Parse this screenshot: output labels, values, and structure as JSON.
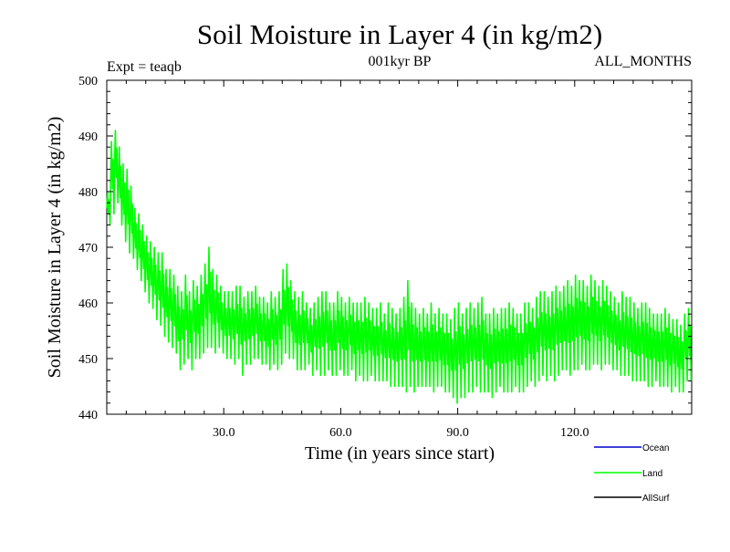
{
  "chart_data": {
    "type": "line",
    "title": "Soil Moisture in Layer 4 (in kg/m2)",
    "subtitle_left": "Expt = teaqb",
    "subtitle_center": "001kyr BP",
    "subtitle_right": "ALL_MONTHS",
    "xlabel": "Time (in years since start)",
    "ylabel": "Soil Moisture in Layer 4 (in kg/m2)",
    "xlim": [
      0,
      150
    ],
    "ylim": [
      440,
      500
    ],
    "x_ticks": [
      30,
      60,
      90,
      120
    ],
    "x_tick_labels": [
      "30.0",
      "60.0",
      "90.0",
      "120.0"
    ],
    "y_ticks": [
      440,
      450,
      460,
      470,
      480,
      490,
      500
    ],
    "y_tick_labels": [
      "440",
      "450",
      "460",
      "470",
      "480",
      "490",
      "500"
    ],
    "grid": false,
    "legend_position": "bottom-right, outside plot",
    "series": [
      {
        "name": "Ocean",
        "color": "#0000cc",
        "shown_in_plot": false,
        "points": []
      },
      {
        "name": "Land",
        "color": "#00ff00",
        "sampling": "monthly (seasonal cycle); values below are [x, min, max] envelope per year",
        "envelope": [
          [
            0.5,
            474,
            480
          ],
          [
            1.5,
            476,
            489
          ],
          [
            2.5,
            478,
            491
          ],
          [
            3.5,
            474,
            488
          ],
          [
            4.5,
            471,
            485
          ],
          [
            5.5,
            469,
            484
          ],
          [
            6.5,
            468,
            481
          ],
          [
            7.5,
            466,
            477
          ],
          [
            8.5,
            464,
            476
          ],
          [
            9.5,
            462,
            474
          ],
          [
            10.5,
            460,
            472
          ],
          [
            11.5,
            459,
            471
          ],
          [
            12.5,
            457,
            470
          ],
          [
            13.5,
            456,
            469
          ],
          [
            14.5,
            454,
            469
          ],
          [
            15.5,
            453,
            466
          ],
          [
            16.5,
            452,
            466
          ],
          [
            17.5,
            451,
            465
          ],
          [
            18.5,
            448,
            463
          ],
          [
            19.5,
            449,
            462
          ],
          [
            20.5,
            450,
            465
          ],
          [
            21.5,
            448,
            462
          ],
          [
            22.5,
            450,
            464
          ],
          [
            23.5,
            450,
            463
          ],
          [
            24.5,
            451,
            465
          ],
          [
            25.5,
            452,
            467
          ],
          [
            26.5,
            452,
            470
          ],
          [
            27.5,
            451,
            466
          ],
          [
            28.5,
            452,
            465
          ],
          [
            29.5,
            451,
            463
          ],
          [
            30.5,
            450,
            462
          ],
          [
            31.5,
            450,
            462
          ],
          [
            32.5,
            449,
            462
          ],
          [
            33.5,
            450,
            463
          ],
          [
            34.5,
            447,
            463
          ],
          [
            35.5,
            449,
            461
          ],
          [
            36.5,
            449,
            462
          ],
          [
            37.5,
            450,
            462
          ],
          [
            38.5,
            450,
            463
          ],
          [
            39.5,
            449,
            461
          ],
          [
            40.5,
            449,
            461
          ],
          [
            41.5,
            448,
            460
          ],
          [
            42.5,
            449,
            462
          ],
          [
            43.5,
            448,
            461
          ],
          [
            44.5,
            449,
            462
          ],
          [
            45.5,
            451,
            466
          ],
          [
            46.5,
            450,
            467
          ],
          [
            47.5,
            450,
            464
          ],
          [
            48.5,
            448,
            462
          ],
          [
            49.5,
            448,
            461
          ],
          [
            50.5,
            448,
            462
          ],
          [
            51.5,
            449,
            460
          ],
          [
            52.5,
            447,
            459
          ],
          [
            53.5,
            448,
            460
          ],
          [
            54.5,
            447,
            461
          ],
          [
            55.5,
            447,
            462
          ],
          [
            56.5,
            448,
            462
          ],
          [
            57.5,
            447,
            460
          ],
          [
            58.5,
            447,
            460
          ],
          [
            59.5,
            448,
            462
          ],
          [
            60.5,
            447,
            461
          ],
          [
            61.5,
            447,
            460
          ],
          [
            62.5,
            448,
            461
          ],
          [
            63.5,
            446,
            460
          ],
          [
            64.5,
            447,
            460
          ],
          [
            65.5,
            446,
            460
          ],
          [
            66.5,
            446,
            461
          ],
          [
            67.5,
            447,
            460
          ],
          [
            68.5,
            446,
            459
          ],
          [
            69.5,
            446,
            459
          ],
          [
            70.5,
            446,
            460
          ],
          [
            71.5,
            446,
            458
          ],
          [
            72.5,
            445,
            460
          ],
          [
            73.5,
            445,
            459
          ],
          [
            74.5,
            445,
            458
          ],
          [
            75.5,
            445,
            459
          ],
          [
            76.5,
            444,
            461
          ],
          [
            77.5,
            445,
            464
          ],
          [
            78.5,
            444,
            460
          ],
          [
            79.5,
            445,
            459
          ],
          [
            80.5,
            445,
            458
          ],
          [
            81.5,
            445,
            459
          ],
          [
            82.5,
            445,
            458
          ],
          [
            83.5,
            444,
            460
          ],
          [
            84.5,
            445,
            458
          ],
          [
            85.5,
            445,
            459
          ],
          [
            86.5,
            444,
            458
          ],
          [
            87.5,
            444,
            458
          ],
          [
            88.5,
            443,
            457
          ],
          [
            89.5,
            442,
            459
          ],
          [
            90.5,
            443,
            460
          ],
          [
            91.5,
            443,
            458
          ],
          [
            92.5,
            444,
            459
          ],
          [
            93.5,
            444,
            460
          ],
          [
            94.5,
            445,
            459
          ],
          [
            95.5,
            444,
            460
          ],
          [
            96.5,
            444,
            461
          ],
          [
            97.5,
            444,
            458
          ],
          [
            98.5,
            443,
            458
          ],
          [
            99.5,
            444,
            459
          ],
          [
            100.5,
            445,
            458
          ],
          [
            101.5,
            444,
            459
          ],
          [
            102.5,
            444,
            459
          ],
          [
            103.5,
            444,
            460
          ],
          [
            104.5,
            445,
            459
          ],
          [
            105.5,
            444,
            458
          ],
          [
            106.5,
            444,
            458
          ],
          [
            107.5,
            445,
            460
          ],
          [
            108.5,
            446,
            460
          ],
          [
            109.5,
            445,
            459
          ],
          [
            110.5,
            446,
            461
          ],
          [
            111.5,
            447,
            462
          ],
          [
            112.5,
            446,
            462
          ],
          [
            113.5,
            447,
            461
          ],
          [
            114.5,
            446,
            462
          ],
          [
            115.5,
            447,
            463
          ],
          [
            116.5,
            448,
            462
          ],
          [
            117.5,
            448,
            463
          ],
          [
            118.5,
            447,
            464
          ],
          [
            119.5,
            448,
            463
          ],
          [
            120.5,
            448,
            465
          ],
          [
            121.5,
            449,
            464
          ],
          [
            122.5,
            448,
            464
          ],
          [
            123.5,
            448,
            463
          ],
          [
            124.5,
            449,
            465
          ],
          [
            125.5,
            449,
            464
          ],
          [
            126.5,
            448,
            463
          ],
          [
            127.5,
            449,
            464
          ],
          [
            128.5,
            449,
            463
          ],
          [
            129.5,
            448,
            462
          ],
          [
            130.5,
            448,
            461
          ],
          [
            131.5,
            447,
            460
          ],
          [
            132.5,
            447,
            462
          ],
          [
            133.5,
            447,
            461
          ],
          [
            134.5,
            446,
            461
          ],
          [
            135.5,
            446,
            460
          ],
          [
            136.5,
            446,
            459
          ],
          [
            137.5,
            446,
            460
          ],
          [
            138.5,
            445,
            460
          ],
          [
            139.5,
            445,
            459
          ],
          [
            140.5,
            446,
            458
          ],
          [
            141.5,
            445,
            458
          ],
          [
            142.5,
            445,
            458
          ],
          [
            143.5,
            445,
            459
          ],
          [
            144.5,
            444,
            458
          ],
          [
            145.5,
            445,
            457
          ],
          [
            146.5,
            444,
            457
          ],
          [
            147.5,
            444,
            456
          ],
          [
            148.5,
            446,
            458
          ],
          [
            149.5,
            446,
            459
          ]
        ]
      },
      {
        "name": "AllSurf",
        "color": "#000000",
        "shown_in_plot": false,
        "points": []
      }
    ]
  }
}
